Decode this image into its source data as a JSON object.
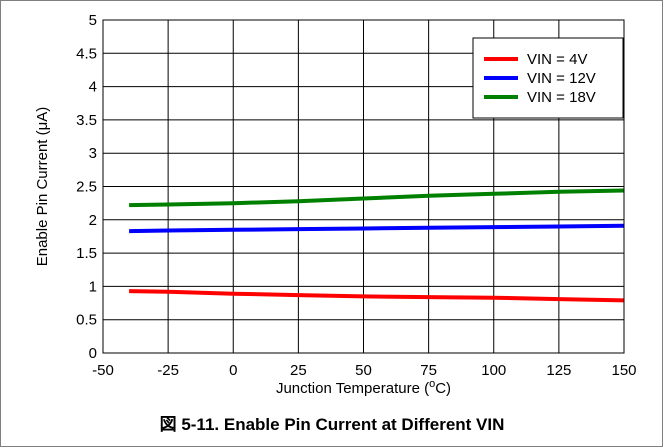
{
  "chart_data": {
    "type": "line",
    "title": "",
    "caption": "図 5-11. Enable Pin Current at Different VIN",
    "xlabel": "Junction Temperature (",
    "xlabel_sup": "o",
    "xlabel_unit": "C)",
    "ylabel": "Enable Pin Current (μA)",
    "xlim": [
      -50,
      150
    ],
    "ylim": [
      0,
      5
    ],
    "xticks": [
      -50,
      -25,
      0,
      25,
      50,
      75,
      100,
      125,
      150
    ],
    "yticks": [
      0,
      0.5,
      1,
      1.5,
      2,
      2.5,
      3,
      3.5,
      4,
      4.5,
      5
    ],
    "grid": true,
    "legend_position": "top-right",
    "series": [
      {
        "name": "VIN = 4V",
        "color": "#ff0000",
        "x": [
          -40,
          -25,
          0,
          25,
          50,
          75,
          100,
          125,
          150
        ],
        "y": [
          0.93,
          0.92,
          0.89,
          0.87,
          0.85,
          0.84,
          0.83,
          0.81,
          0.79
        ]
      },
      {
        "name": "VIN = 12V",
        "color": "#0000ff",
        "x": [
          -40,
          -25,
          0,
          25,
          50,
          75,
          100,
          125,
          150
        ],
        "y": [
          1.83,
          1.84,
          1.85,
          1.86,
          1.87,
          1.88,
          1.89,
          1.9,
          1.91
        ]
      },
      {
        "name": "VIN = 18V",
        "color": "#008000",
        "x": [
          -40,
          -25,
          0,
          25,
          50,
          75,
          100,
          125,
          150
        ],
        "y": [
          2.22,
          2.23,
          2.25,
          2.28,
          2.32,
          2.36,
          2.39,
          2.42,
          2.44
        ]
      }
    ]
  }
}
